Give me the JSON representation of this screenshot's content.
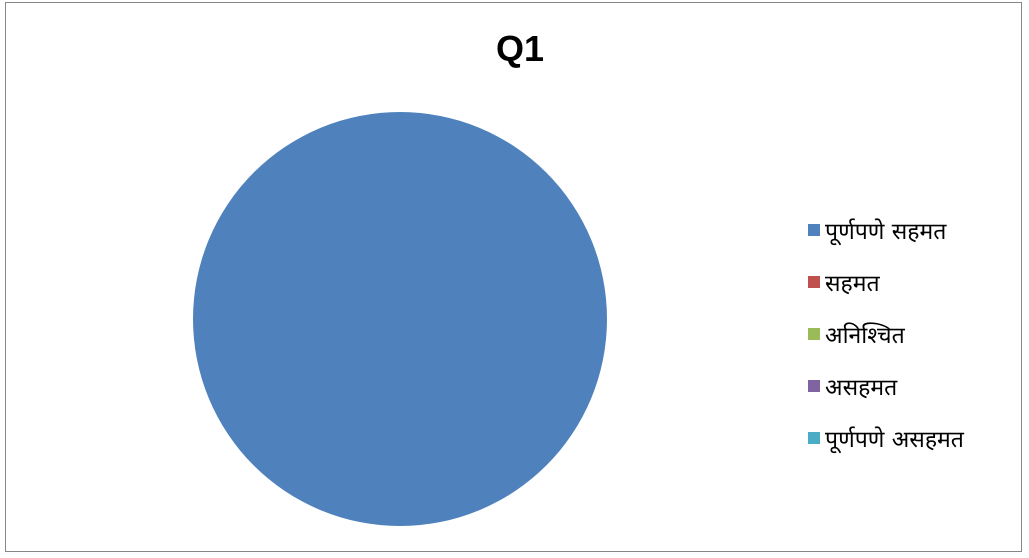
{
  "chart_data": {
    "type": "pie",
    "title": "Q1",
    "categories": [
      "पूर्णपणे सहमत",
      "सहमत",
      "अनिश्चित",
      "असहमत",
      "पूर्णपणे असहमत"
    ],
    "values": [
      100,
      0,
      0,
      0,
      0
    ],
    "colors": [
      "#4F81BD",
      "#C0504D",
      "#9BBB59",
      "#8064A2",
      "#4BACC6"
    ],
    "legend_position": "right"
  }
}
